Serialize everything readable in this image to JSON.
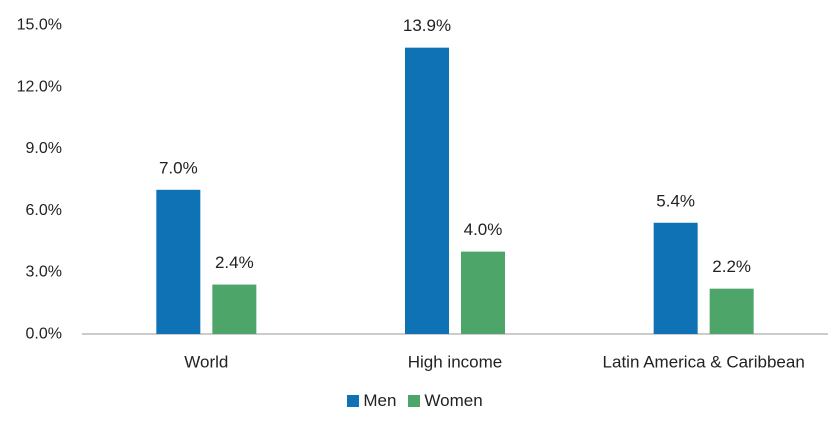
{
  "chart_data": {
    "type": "bar",
    "categories": [
      "World",
      "High income",
      "Latin America & Caribbean"
    ],
    "series": [
      {
        "name": "Men",
        "values": [
          7.0,
          13.9,
          5.4
        ],
        "labels": [
          "7.0%",
          "13.9%",
          "5.4%"
        ],
        "color": "#0f72b5"
      },
      {
        "name": "Women",
        "values": [
          2.4,
          4.0,
          2.2
        ],
        "labels": [
          "2.4%",
          "4.0%",
          "2.2%"
        ],
        "color": "#4da56a"
      }
    ],
    "yticks": [
      "0.0%",
      "3.0%",
      "6.0%",
      "9.0%",
      "12.0%",
      "15.0%"
    ],
    "ylim": [
      0,
      15
    ],
    "grid": false,
    "legend_position": "bottom-center"
  }
}
